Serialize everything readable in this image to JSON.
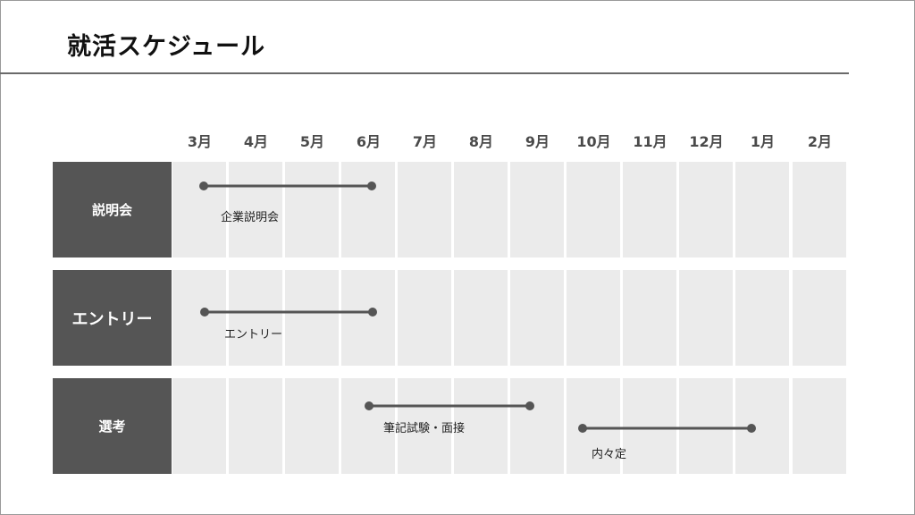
{
  "title": "就活スケジュール",
  "months": [
    "3月",
    "4月",
    "5月",
    "6月",
    "7月",
    "8月",
    "9月",
    "10月",
    "11月",
    "12月",
    "1月",
    "2月"
  ],
  "rows": [
    {
      "label": "説明会"
    },
    {
      "label": "エントリー"
    },
    {
      "label": "選考"
    }
  ],
  "tasks": [
    {
      "row": 0,
      "label": "企業説明会",
      "start_month": 0,
      "end_month": 3
    },
    {
      "row": 1,
      "label": "エントリー",
      "start_month": 0,
      "end_month": 3
    },
    {
      "row": 2,
      "label": "筆記試験・面接",
      "start_month": 3,
      "end_month": 6
    },
    {
      "row": 2,
      "label": "内々定",
      "start_month": 7,
      "end_month": 10
    }
  ],
  "colors": {
    "header_bg": "#555555",
    "cell_bg": "#ebebeb",
    "bar": "#555555"
  }
}
